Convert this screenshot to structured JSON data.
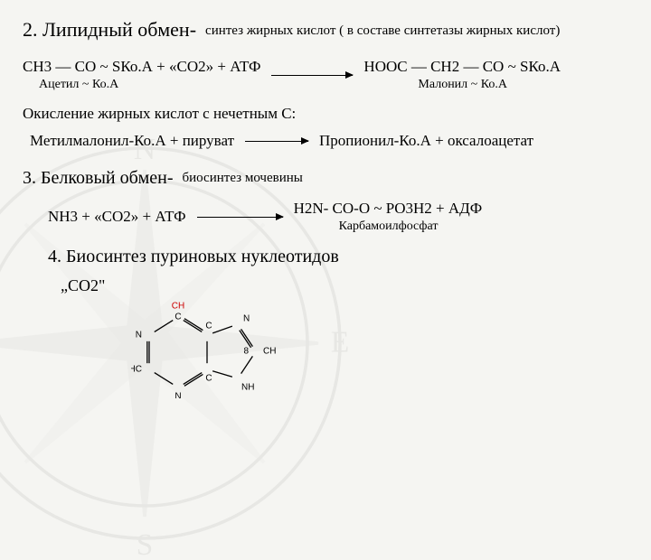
{
  "section2": {
    "title": "2. Липидный обмен-",
    "subtitle": "синтез жирных кислот ( в составе синтетазы жирных кислот)",
    "reaction_left": "CH3 — CO ~ SКо.А + «CO2» + АТФ",
    "reaction_left_label": "Ацетил ~ Ко.А",
    "reaction_right": "HOOC — CH2 — CO ~ SКо.А",
    "reaction_right_label": "Малонил ~ Ко.А",
    "oxidation_title": "Окисление жирных кислот с нечетным С:",
    "oxidation_left": "Метилмалонил-Ко.А + пируват",
    "oxidation_right": "Пропионил-Ко.А + оксалоацетат"
  },
  "section3": {
    "title": "3. Белковый обмен-",
    "subtitle": "биосинтез мочевины",
    "reaction_left": "NH3 + «CO2» + АТФ",
    "reaction_right": "H2N- CO-O ~ PO3H2 + АДФ",
    "product_label": "Карбамоилфосфат"
  },
  "section4": {
    "title": "4. Биосинтез пуриновых нуклеотидов",
    "co2_label": "„СО2\"",
    "purine": {
      "atoms": {
        "n1": "N",
        "c2": "HC",
        "n3": "N",
        "c4": "C",
        "c5": "C",
        "c6": "C",
        "n7": "N",
        "c8": "CH",
        "n9": "NH",
        "ch_top": "CH"
      },
      "colors": {
        "ring": "#000000",
        "ch_red": "#cc0000"
      },
      "stroke_width": 1.3,
      "font_size": 10
    }
  },
  "style": {
    "bg": "#f5f5f2",
    "text": "#000000"
  }
}
